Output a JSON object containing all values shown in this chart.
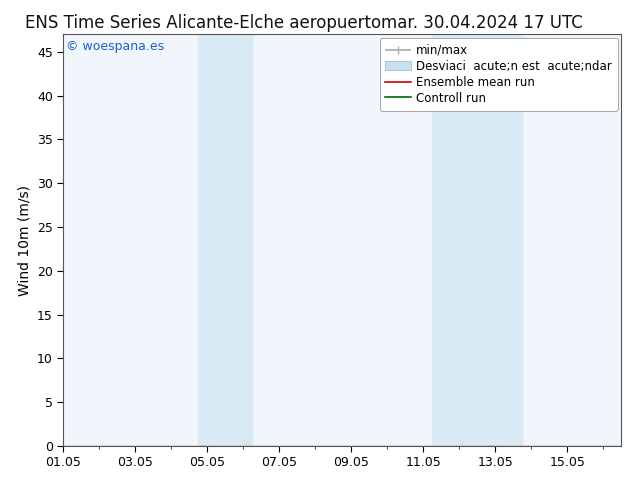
{
  "title_left": "ENS Time Series Alicante-Elche aeropuerto",
  "title_right": "mar. 30.04.2024 17 UTC",
  "ylabel": "Wind 10m (m/s)",
  "watermark": "© woespana.es",
  "legend_line1": "min/max",
  "legend_line2": "Desviaci  acute;n est  acute;ndar",
  "legend_line3": "Ensemble mean run",
  "legend_line4": "Controll run",
  "x_ticks": [
    "01.05",
    "03.05",
    "05.05",
    "07.05",
    "09.05",
    "11.05",
    "13.05",
    "15.05"
  ],
  "x_tick_positions": [
    0,
    2,
    4,
    6,
    8,
    10,
    12,
    14
  ],
  "xlim": [
    0,
    15.5
  ],
  "ylim": [
    0,
    47
  ],
  "yticks": [
    0,
    5,
    10,
    15,
    20,
    25,
    30,
    35,
    40,
    45
  ],
  "shaded_regions": [
    {
      "x_start": 3.75,
      "x_end": 5.25,
      "color": "#daeaf5"
    },
    {
      "x_start": 10.25,
      "x_end": 12.75,
      "color": "#daeaf5"
    }
  ],
  "plot_bg_color": "#f0f6fc",
  "background_color": "#ffffff",
  "title_fontsize": 12,
  "tick_fontsize": 9,
  "ylabel_fontsize": 10,
  "watermark_color": "#1a5fcc",
  "watermark_fontsize": 9,
  "legend_fontsize": 8.5,
  "minmax_color": "#aaaaaa",
  "std_color": "#c8dff0",
  "ensemble_color": "#cc0000",
  "control_color": "#006600"
}
